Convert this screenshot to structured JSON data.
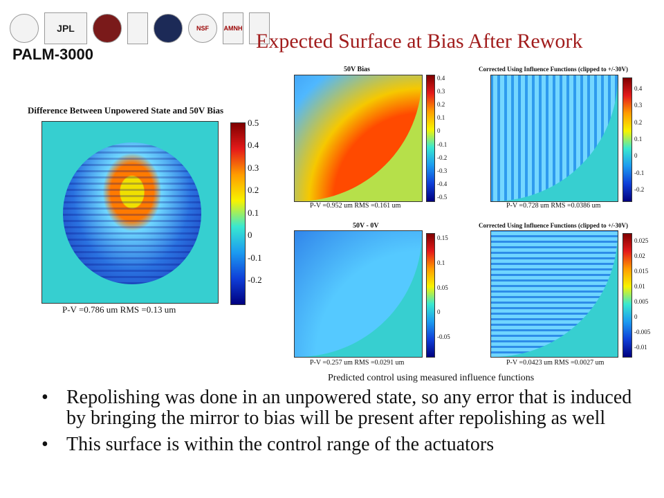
{
  "header": {
    "brand": "PALM-3000",
    "title": "Expected Surface at Bias After Rework",
    "logos": [
      {
        "name": "caltech-torch-logo",
        "text": "",
        "style": "round"
      },
      {
        "name": "jpl-logo",
        "text": "JPL",
        "style": "wide"
      },
      {
        "name": "cornell-seal-logo",
        "text": "",
        "style": "round red"
      },
      {
        "name": "university-crest-logo",
        "text": "",
        "style": ""
      },
      {
        "name": "oxford-crest-logo",
        "text": "",
        "style": "round navy"
      },
      {
        "name": "nsf-logo",
        "text": "NSF",
        "style": "round"
      },
      {
        "name": "amnh-logo",
        "text": "AMNH",
        "style": ""
      },
      {
        "name": "institution-logo",
        "text": "",
        "style": ""
      }
    ]
  },
  "figures": {
    "left": {
      "title": "Difference Between Unpowered State and 50V Bias",
      "caption": "P-V =0.786 um      RMS =0.13 um",
      "ticks": [
        "0.5",
        "0.4",
        "0.3",
        "0.2",
        "0.1",
        "0",
        "-0.1",
        "-0.2"
      ]
    },
    "top_left": {
      "title": "50V Bias",
      "caption": "P-V =0.952 um     RMS =0.161 um",
      "ticks": [
        "0.4",
        "0.3",
        "0.2",
        "0.1",
        "0",
        "-0.1",
        "-0.2",
        "-0.3",
        "-0.4",
        "-0.5"
      ]
    },
    "top_right": {
      "title": "Corrected Using Influence Functions (clipped to +/-30V)",
      "caption": "P-V =0.728 um     RMS =0.0386 um",
      "ticks": [
        "0.4",
        "0.3",
        "0.2",
        "0.1",
        "0",
        "-0.1",
        "-0.2"
      ]
    },
    "bottom_left": {
      "title": "50V - 0V",
      "caption": "P-V =0.257 um     RMS =0.0291 um",
      "ticks": [
        "0.15",
        "0.1",
        "0.05",
        "0",
        "-0.05"
      ]
    },
    "bottom_right": {
      "title": "Corrected Using Influence Functions (clipped to +/-30V)",
      "caption": "P-V =0.0423 um     RMS =0.0027 um",
      "ticks": [
        "0.025",
        "0.02",
        "0.015",
        "0.01",
        "0.005",
        "0",
        "-0.005",
        "-0.01"
      ]
    }
  },
  "note": "Predicted control using measured influence functions",
  "bullets": [
    "Repolishing was done in an unpowered state, so any error that is induced by bringing the mirror to bias will be present after repolishing as well",
    "This surface is within the control range of the actuators"
  ]
}
